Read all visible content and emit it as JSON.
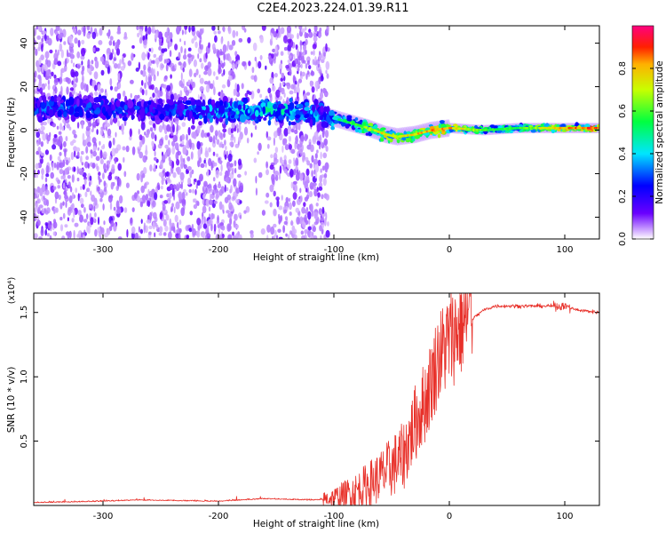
{
  "title": "C2E4.2023.224.01.39.R11",
  "colors": {
    "snr_line": "#e8312a",
    "axis": "#000000"
  },
  "chart_data": [
    {
      "type": "heatmap",
      "xlabel": "Height of straight line (km)",
      "ylabel": "Frequency (Hz)",
      "xlim": [
        -360,
        130
      ],
      "ylim": [
        -50,
        48
      ],
      "xticks": [
        -300,
        -200,
        -100,
        0,
        100
      ],
      "yticks": [
        -40,
        -20,
        0,
        20,
        40
      ],
      "colorbar": {
        "label": "Normalized spectral amplitude",
        "range": [
          0.0,
          1.0
        ],
        "ticks": [
          "0.0",
          "0.2",
          "0.4",
          "0.6",
          "0.8"
        ],
        "colormap": "rainbow"
      },
      "ridge": {
        "x": [
          -360,
          -300,
          -250,
          -200,
          -150,
          -110,
          -90,
          -70,
          -55,
          -45,
          -30,
          -15,
          0,
          30,
          60,
          90,
          130
        ],
        "frequency": [
          10,
          10,
          9,
          9,
          9,
          7,
          4,
          1,
          -2,
          -3,
          -2,
          0,
          1,
          0,
          1,
          1,
          1
        ],
        "amplitude": [
          0.35,
          0.35,
          0.3,
          0.45,
          0.5,
          0.4,
          0.55,
          0.7,
          0.8,
          0.75,
          0.8,
          0.85,
          0.85,
          0.6,
          0.6,
          0.8,
          0.95
        ]
      }
    },
    {
      "type": "line",
      "xlabel": "Height of straight line (km)",
      "ylabel": "SNR (10 * v/v)",
      "y_multiplier": "(x10⁴)",
      "xlim": [
        -360,
        130
      ],
      "ylim": [
        0,
        1.65
      ],
      "xticks": [
        -300,
        -200,
        -100,
        0,
        100
      ],
      "yticks": [
        0.5,
        1.0,
        1.5
      ],
      "ytick_labels": [
        "0.5",
        "1.0",
        "1.5"
      ],
      "series": [
        {
          "x": [
            -360,
            -300,
            -270,
            -200,
            -160,
            -120,
            -100,
            -80,
            -60,
            -40,
            -30,
            -20,
            -10,
            0,
            10,
            20,
            30,
            40,
            60,
            80,
            100,
            110,
            130
          ],
          "y": [
            0.02,
            0.03,
            0.04,
            0.03,
            0.05,
            0.04,
            0.05,
            0.1,
            0.2,
            0.35,
            0.6,
            0.8,
            1.1,
            1.25,
            1.35,
            1.45,
            1.52,
            1.55,
            1.55,
            1.55,
            1.55,
            1.52,
            1.5
          ]
        }
      ]
    }
  ]
}
